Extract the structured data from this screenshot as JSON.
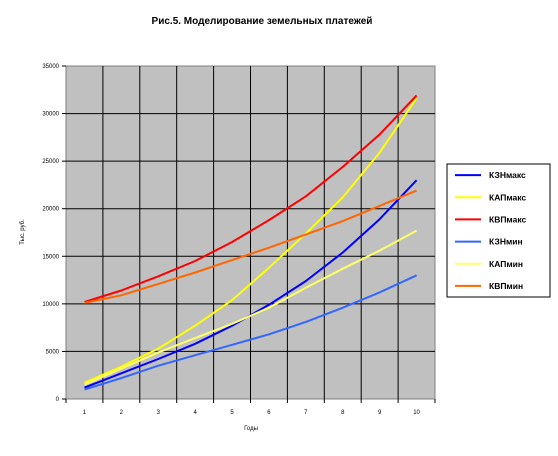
{
  "chart_data": {
    "type": "line",
    "title": "Рис.5. Моделирование земельных платежей",
    "xlabel": "Годы",
    "ylabel": "Тыс. руб.",
    "x": [
      1,
      2,
      3,
      4,
      5,
      6,
      7,
      8,
      9,
      10
    ],
    "xlim": [
      0.5,
      10.5
    ],
    "ylim": [
      0,
      35000
    ],
    "yticks": [
      0,
      5000,
      10000,
      15000,
      20000,
      25000,
      30000,
      35000
    ],
    "grid": true,
    "plot_background": "#c0c0c0",
    "legend_position": "right",
    "series": [
      {
        "name": "КЗНмакс",
        "color": "#0000ff",
        "values": [
          1200,
          2700,
          4200,
          5800,
          7700,
          9900,
          12400,
          15400,
          18900,
          23000
        ]
      },
      {
        "name": "КАПмакс",
        "color": "#ffff00",
        "values": [
          1700,
          3400,
          5300,
          7700,
          10400,
          13800,
          17400,
          21200,
          25900,
          31600
        ]
      },
      {
        "name": "КВПмакс",
        "color": "#ff0000",
        "values": [
          10200,
          11400,
          12900,
          14500,
          16500,
          18800,
          21300,
          24400,
          27800,
          31900
        ]
      },
      {
        "name": "КЗНмин",
        "color": "#3366ff",
        "values": [
          1000,
          2200,
          3500,
          4600,
          5700,
          6800,
          8100,
          9600,
          11200,
          13000
        ]
      },
      {
        "name": "КАПмин",
        "color": "#ffff66",
        "values": [
          1500,
          3200,
          4900,
          6400,
          7900,
          9600,
          11700,
          13700,
          15600,
          17700
        ]
      },
      {
        "name": "КВПмин",
        "color": "#ff6600",
        "values": [
          10100,
          10900,
          12100,
          13300,
          14600,
          15900,
          17300,
          18700,
          20300,
          21900
        ]
      }
    ]
  }
}
